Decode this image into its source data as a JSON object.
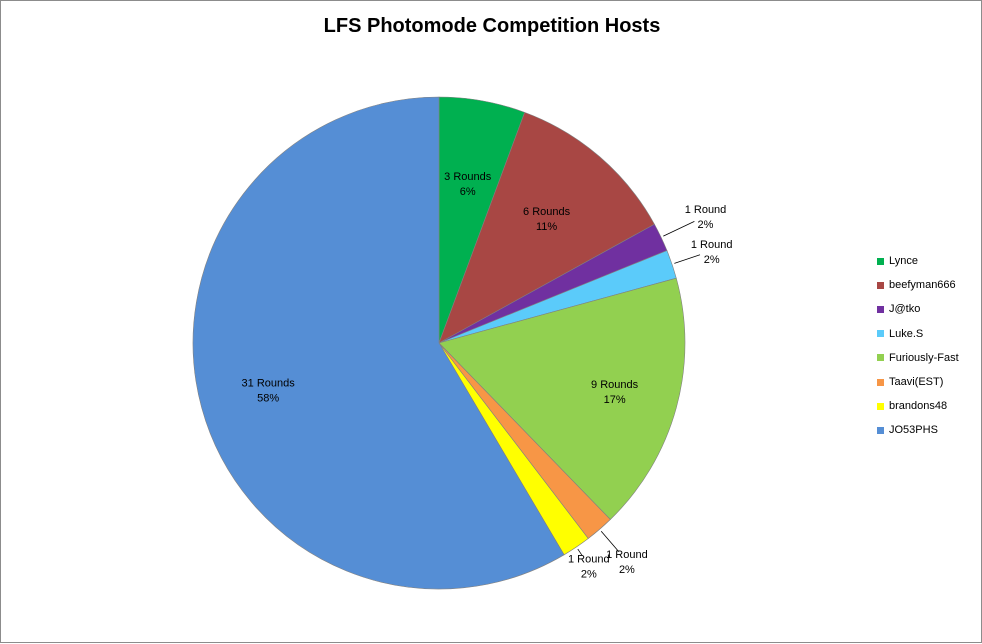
{
  "chart_data": {
    "type": "pie",
    "title": "LFS Photomode Competition Hosts",
    "legend_position": "right",
    "slices": [
      {
        "name": "Lynce",
        "value": 3,
        "color": "#00B050",
        "label": "3 Rounds",
        "percent": "6%"
      },
      {
        "name": "beefyman666",
        "value": 6,
        "color": "#A84744",
        "label": "6 Rounds",
        "percent": "11%"
      },
      {
        "name": "J@tko",
        "value": 1,
        "color": "#7030A0",
        "label": "1 Round",
        "percent": "2%"
      },
      {
        "name": "Luke.S",
        "value": 1,
        "color": "#5BCBFA",
        "label": "1 Round",
        "percent": "2%"
      },
      {
        "name": "Furiously-Fast",
        "value": 9,
        "color": "#92D050",
        "label": "9 Rounds",
        "percent": "17%"
      },
      {
        "name": "Taavi(EST)",
        "value": 1,
        "color": "#F79646",
        "label": "1 Round",
        "percent": "2%"
      },
      {
        "name": "brandons48",
        "value": 1,
        "color": "#FFFF00",
        "label": "1 Round",
        "percent": "2%"
      },
      {
        "name": "JO53PHS",
        "value": 31,
        "color": "#558ED5",
        "label": "31 Rounds",
        "percent": "58%"
      }
    ]
  }
}
